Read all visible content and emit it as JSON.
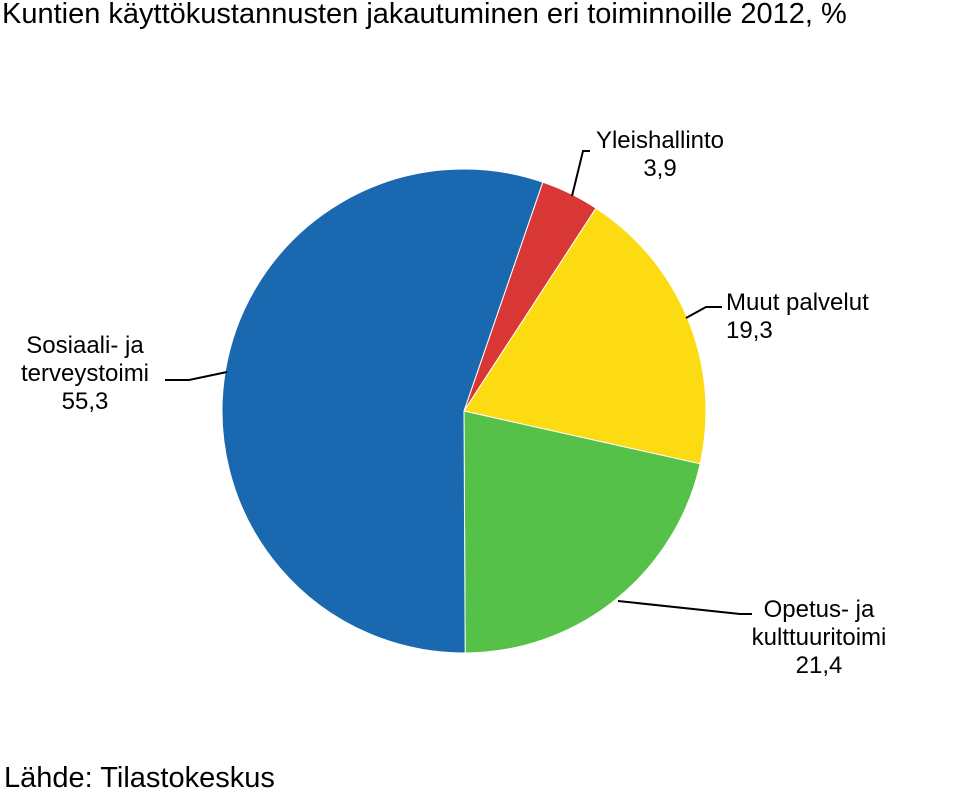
{
  "title": "Kuntien käyttökustannusten jakautuminen eri toiminnoille 2012, %",
  "source": "Lähde: Tilastokeskus",
  "chart_data": {
    "type": "pie",
    "title": "Kuntien käyttökustannusten jakautuminen eri toiminnoille 2012, %",
    "unit": "%",
    "slices": [
      {
        "label_lines": [
          "Yleishallinto"
        ],
        "value_text": "3,9",
        "value": 3.9,
        "color": "#d93636"
      },
      {
        "label_lines": [
          "Muut palvelut"
        ],
        "value_text": "19,3",
        "value": 19.3,
        "color": "#fddb12"
      },
      {
        "label_lines": [
          "Opetus- ja",
          "kulttuuritoimi"
        ],
        "value_text": "21,4",
        "value": 21.4,
        "color": "#56c148"
      },
      {
        "label_lines": [
          "Sosiaali- ja",
          "terveystoimi"
        ],
        "value_text": "55,3",
        "value": 55.3,
        "color": "#1a69b0"
      }
    ]
  }
}
